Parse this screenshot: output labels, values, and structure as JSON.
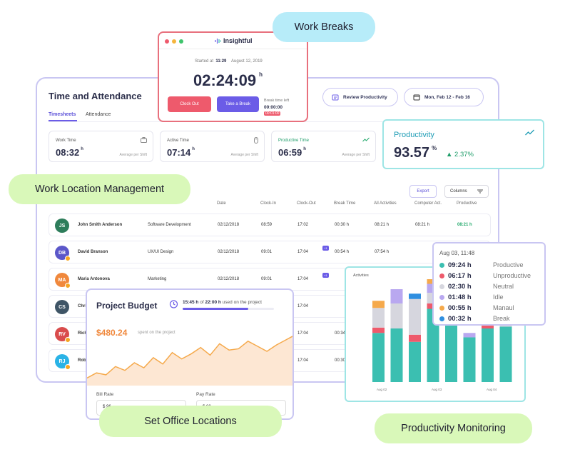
{
  "colors": {
    "accent": "#6b5ce7",
    "teal": "#3bbfb1",
    "danger": "#ee5a6c",
    "success": "#22a96b"
  },
  "main": {
    "title": "Time and Attendance",
    "tabs": [
      "Timesheets",
      "Attendance"
    ],
    "review_label": "Review Productivity",
    "date_range": "Mon, Feb 12 - Feb 16",
    "export_label": "Export",
    "columns_label": "Columns",
    "stats": [
      {
        "label": "Work Time",
        "value": "08:32",
        "unit": "h",
        "sub": "Average per Shift",
        "icon": "briefcase-icon"
      },
      {
        "label": "Active Time",
        "value": "07:14",
        "unit": "h",
        "sub": "Average per Shift",
        "icon": "mouse-icon"
      },
      {
        "label": "Productive Time",
        "value": "06:59",
        "unit": "h",
        "sub": "Average per Shift",
        "icon": "trend-icon"
      }
    ],
    "table": {
      "headers": [
        "Date",
        "Clock-In",
        "Clock-Out",
        "Break Time",
        "All Activities",
        "Computer Act.",
        "Productive"
      ],
      "rows": [
        {
          "initials": "JS",
          "name": "John Smith Anderson",
          "team": "Software Development",
          "date": "02/12/2018",
          "in": "08:59",
          "out": "17:02",
          "break": "00:30 h",
          "all": "08:21 h",
          "comp": "08:21 h",
          "prod": "08:21 h",
          "color": "#2e7d5b"
        },
        {
          "initials": "DB",
          "name": "David Branson",
          "team": "UX/UI Design",
          "date": "02/12/2018",
          "in": "09:01",
          "out": "17:04",
          "break": "00:54 h",
          "all": "07:54 h",
          "comp": "",
          "prod": "",
          "color": "#5b57c9"
        },
        {
          "initials": "MA",
          "name": "Maria Antonova",
          "team": "Marketing",
          "date": "02/12/2018",
          "in": "09:01",
          "out": "17:04",
          "break": "",
          "all": "",
          "comp": "",
          "prod": "",
          "color": "#f0883c"
        },
        {
          "initials": "CS",
          "name": "Chri",
          "team": "",
          "date": "",
          "in": "",
          "out": "17:04",
          "break": "",
          "all": "",
          "comp": "",
          "prod": "",
          "color": "#3f5566"
        },
        {
          "initials": "RV",
          "name": "Rich",
          "team": "",
          "date": "",
          "in": "",
          "out": "17:04",
          "break": "00:34",
          "all": "",
          "comp": "",
          "prod": "",
          "color": "#d94c4c"
        },
        {
          "initials": "RJ",
          "name": "Robe",
          "team": "",
          "date": "",
          "in": "",
          "out": "17:04",
          "break": "00:30",
          "all": "",
          "comp": "",
          "prod": "",
          "color": "#2ab3e6"
        }
      ],
      "sup_tag": "+1"
    }
  },
  "clock": {
    "brand": "Insightful",
    "started_label": "Started at",
    "started_time": "11:29",
    "started_date": "August 12, 2019",
    "time": "02:24:09",
    "unit": "h",
    "clock_out_label": "Clock Out",
    "break_label": "Take a Break",
    "break_left_label": "Break time left",
    "break_left_value": "00:00:00",
    "break_red": "00:01:00"
  },
  "pills": {
    "breaks": "Work Breaks",
    "location": "Work Location Management",
    "office": "Set Office Locations",
    "monitoring": "Productivity Monitoring"
  },
  "productivity": {
    "title": "Productivity",
    "value": "93.57",
    "unit": "%",
    "change": "▲ 2.37%"
  },
  "budget": {
    "title": "Project Budget",
    "used_hours": "15:45 h",
    "of_label": "of",
    "total_hours": "22:00 h",
    "used_suffix": "used on the project",
    "progress": 0.72,
    "amount": "$480.24",
    "spent_label": "spent on the project",
    "bill_rate_label": "Bill Rate",
    "pay_rate_label": "Pay Rate",
    "bill_rate_value": "$ 96",
    "pay_rate_value": "$ 80",
    "chart_values": [
      12,
      20,
      17,
      30,
      24,
      36,
      28,
      44,
      34,
      52,
      42,
      50,
      60,
      48,
      66,
      56,
      58,
      70,
      62,
      54,
      64,
      72,
      80
    ]
  },
  "activities": {
    "title": "Activities",
    "x_labels": [
      "Aug 02",
      "Aug 03",
      "Aug 04"
    ],
    "segment_order": [
      "productive",
      "unproductive",
      "neutral",
      "idle",
      "manual",
      "break"
    ],
    "bars": [
      [
        55,
        6,
        22,
        0,
        8,
        0
      ],
      [
        60,
        0,
        28,
        16,
        0,
        0
      ],
      [
        45,
        8,
        40,
        0,
        0,
        6
      ],
      [
        82,
        6,
        12,
        10,
        7,
        0
      ],
      [
        68,
        0,
        8,
        0,
        0,
        0
      ],
      [
        50,
        0,
        0,
        5,
        0,
        0
      ],
      [
        60,
        7,
        2,
        0,
        0,
        0
      ],
      [
        62,
        0,
        8,
        0,
        0,
        0
      ]
    ]
  },
  "tooltip": {
    "title": "Aug 03, 11:48",
    "items": [
      {
        "value": "09:24 h",
        "label": "Productive",
        "color": "#3bbfb1"
      },
      {
        "value": "06:17 h",
        "label": "Unproductive",
        "color": "#ee5a6c"
      },
      {
        "value": "02:30 h",
        "label": "Neutral",
        "color": "#d6d6de"
      },
      {
        "value": "01:48 h",
        "label": "Idle",
        "color": "#b9a8f0"
      },
      {
        "value": "00:55 h",
        "label": "Manaul",
        "color": "#f5a94b"
      },
      {
        "value": "00:32 h",
        "label": "Break",
        "color": "#2f8fe0"
      }
    ]
  }
}
